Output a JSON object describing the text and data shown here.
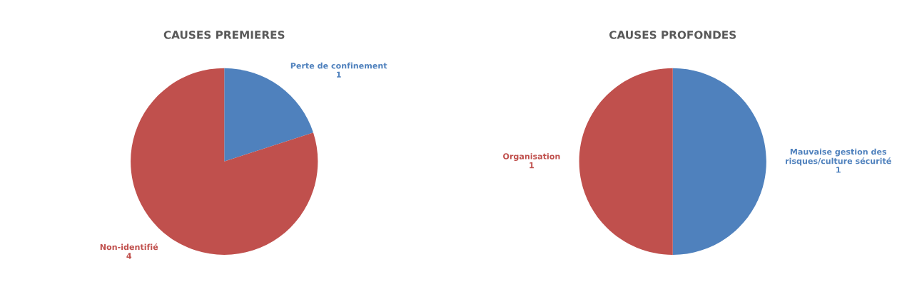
{
  "chart_data": [
    {
      "type": "pie",
      "title": "CAUSES PREMIERES",
      "categories": [
        "Perte de confinement",
        "Non-identifié"
      ],
      "values": [
        1,
        4
      ],
      "colors": [
        "#4f81bd",
        "#c0504d"
      ],
      "data_labels": true
    },
    {
      "type": "pie",
      "title": "CAUSES PROFONDES",
      "categories": [
        "Mauvaise gestion des risques/culture sécurité",
        "Organisation"
      ],
      "values": [
        1,
        1
      ],
      "colors": [
        "#4f81bd",
        "#c0504d"
      ],
      "data_labels": true
    }
  ]
}
